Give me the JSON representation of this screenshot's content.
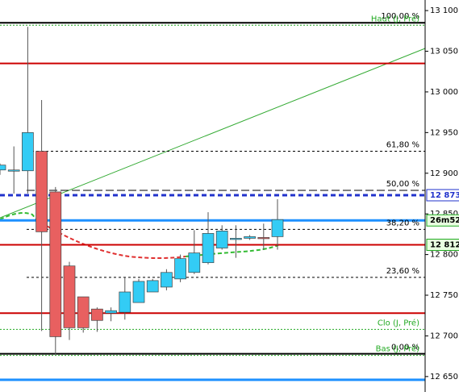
{
  "chart_data": {
    "type": "candlestick",
    "ylim": [
      12631,
      13113
    ],
    "yticks": [
      {
        "value": 13100,
        "label": "13 100"
      },
      {
        "value": 13050,
        "label": "13 050"
      },
      {
        "value": 13000,
        "label": "13 000"
      },
      {
        "value": 12950,
        "label": "12 950"
      },
      {
        "value": 12900,
        "label": "12 900"
      },
      {
        "value": 12850,
        "label": "12 850"
      },
      {
        "value": 12800,
        "label": "12 800"
      },
      {
        "value": 12750,
        "label": "12 750"
      },
      {
        "value": 12700,
        "label": "12 700"
      },
      {
        "value": 12650,
        "label": "12 650"
      }
    ],
    "up_color": "#33ccf5",
    "down_color": "#e86060",
    "candles": [
      {
        "open": 12904,
        "high": 12912,
        "low": 12898,
        "close": 12910
      },
      {
        "open": 12903,
        "high": 12933,
        "low": 12875,
        "close": 12904
      },
      {
        "open": 12903,
        "high": 13080,
        "low": 12875,
        "close": 12950
      },
      {
        "open": 12927,
        "high": 12990,
        "low": 12706,
        "close": 12828
      },
      {
        "open": 12877,
        "high": 12883,
        "low": 12677,
        "close": 12699
      },
      {
        "open": 12786,
        "high": 12791,
        "low": 12695,
        "close": 12710
      },
      {
        "open": 12748,
        "high": 12748,
        "low": 12704,
        "close": 12710
      },
      {
        "open": 12733,
        "high": 12735,
        "low": 12705,
        "close": 12719
      },
      {
        "open": 12728,
        "high": 12735,
        "low": 12718,
        "close": 12731
      },
      {
        "open": 12729,
        "high": 12772,
        "low": 12720,
        "close": 12754
      },
      {
        "open": 12741,
        "high": 12770,
        "low": 12741,
        "close": 12767
      },
      {
        "open": 12754,
        "high": 12770,
        "low": 12754,
        "close": 12768
      },
      {
        "open": 12760,
        "high": 12782,
        "low": 12756,
        "close": 12778
      },
      {
        "open": 12770,
        "high": 12800,
        "low": 12766,
        "close": 12795
      },
      {
        "open": 12778,
        "high": 12830,
        "low": 12776,
        "close": 12802
      },
      {
        "open": 12790,
        "high": 12852,
        "low": 12788,
        "close": 12826
      },
      {
        "open": 12808,
        "high": 12836,
        "low": 12806,
        "close": 12829
      },
      {
        "open": 12819,
        "high": 12836,
        "low": 12796,
        "close": 12820
      },
      {
        "open": 12820,
        "high": 12824,
        "low": 12818,
        "close": 12822
      },
      {
        "open": 12821,
        "high": 12838,
        "low": 12806,
        "close": 12820
      },
      {
        "open": 12822,
        "high": 12868,
        "low": 12806,
        "close": 12843
      }
    ],
    "levels": [
      {
        "value": 13085,
        "color": "#000000",
        "style": "solid",
        "label": "100,00 %"
      },
      {
        "value": 13082,
        "color": "#22aa22",
        "style": "dotted",
        "label": "Haut (J, Pré)"
      },
      {
        "value": 13035,
        "color": "#cc0000",
        "style": "solid"
      },
      {
        "value": 12927,
        "color": "#000000",
        "style": "dashed",
        "label": "61,80 %"
      },
      {
        "value": 12879,
        "color": "#000000",
        "style": "longdash",
        "label": "50,00 %"
      },
      {
        "value": 12873,
        "color": "#2233cc",
        "style": "bigdash"
      },
      {
        "value": 12842,
        "color": "#1e90ff",
        "style": "thick"
      },
      {
        "value": 12831,
        "color": "#000000",
        "style": "dashed",
        "label": "38,20 %"
      },
      {
        "value": 12812,
        "color": "#cc0000",
        "style": "solid"
      },
      {
        "value": 12772,
        "color": "#000000",
        "style": "dashed",
        "label": "23,60 %"
      },
      {
        "value": 12728,
        "color": "#cc0000",
        "style": "solid"
      },
      {
        "value": 12708,
        "color": "#22aa22",
        "style": "dotted",
        "label": "Clo (J, Pré)"
      },
      {
        "value": 12678,
        "color": "#000000",
        "style": "solid",
        "label": "0,00 %"
      },
      {
        "value": 12676,
        "color": "#22aa22",
        "style": "dotted",
        "label": "Bas (J, Pré)"
      },
      {
        "value": 12646,
        "color": "#1e90ff",
        "style": "thick"
      }
    ],
    "price_tags": [
      {
        "value": 12873,
        "label": "12 873",
        "color": "#2233cc"
      },
      {
        "value": 12842,
        "label": "26m52s",
        "color": "#22aa22"
      },
      {
        "value": 12812,
        "label": "12 812",
        "color": "#22aa22"
      }
    ]
  }
}
